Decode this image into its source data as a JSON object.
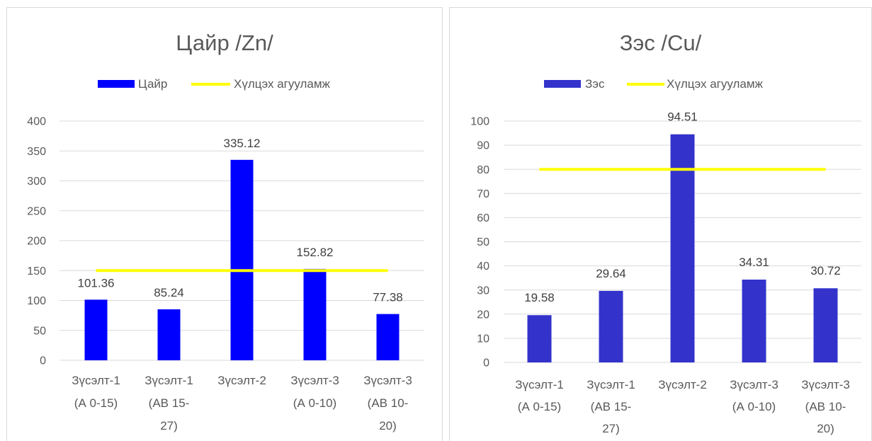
{
  "chart_data": [
    {
      "type": "bar",
      "title": "Цайр /Zn/",
      "categories": [
        "Зүсэлт-1\n(А 0-15)",
        "Зүсэлт-1\n(АВ 15-\n27)",
        "Зүсэлт-2",
        "Зүсэлт-3\n(А 0-10)",
        "Зүсэлт-3\n(АВ 10-\n20)"
      ],
      "series": [
        {
          "name": "Цайр",
          "type": "bar",
          "color": "#0000FF",
          "data_labels": true,
          "values": [
            101.36,
            85.24,
            335.12,
            152.82,
            77.38
          ]
        },
        {
          "name": "Хүлцэх агууламж",
          "type": "line",
          "color": "#FFFF00",
          "data_labels": false,
          "values": [
            150,
            150,
            150,
            150,
            150
          ]
        }
      ],
      "ylim": [
        0,
        400
      ],
      "yticks": [
        0,
        50,
        100,
        150,
        200,
        250,
        300,
        350,
        400
      ],
      "grid": true,
      "legend": "top"
    },
    {
      "type": "bar",
      "title": "Зэс /Cu/",
      "categories": [
        "Зүсэлт-1\n(А 0-15)",
        "Зүсэлт-1\n(АВ 15-\n27)",
        "Зүсэлт-2",
        "Зүсэлт-3\n(А 0-10)",
        "Зүсэлт-3\n(АВ 10-\n20)"
      ],
      "series": [
        {
          "name": "Зэс",
          "type": "bar",
          "color": "#3333CC",
          "data_labels": true,
          "values": [
            19.58,
            29.64,
            94.51,
            34.31,
            30.72
          ]
        },
        {
          "name": "Хүлцэх агууламж",
          "type": "line",
          "color": "#FFFF00",
          "data_labels": false,
          "values": [
            80,
            80,
            80,
            80,
            80
          ]
        }
      ],
      "ylim": [
        0,
        100
      ],
      "yticks": [
        0,
        10,
        20,
        30,
        40,
        50,
        60,
        70,
        80,
        90,
        100
      ],
      "grid": true,
      "legend": "top"
    }
  ]
}
